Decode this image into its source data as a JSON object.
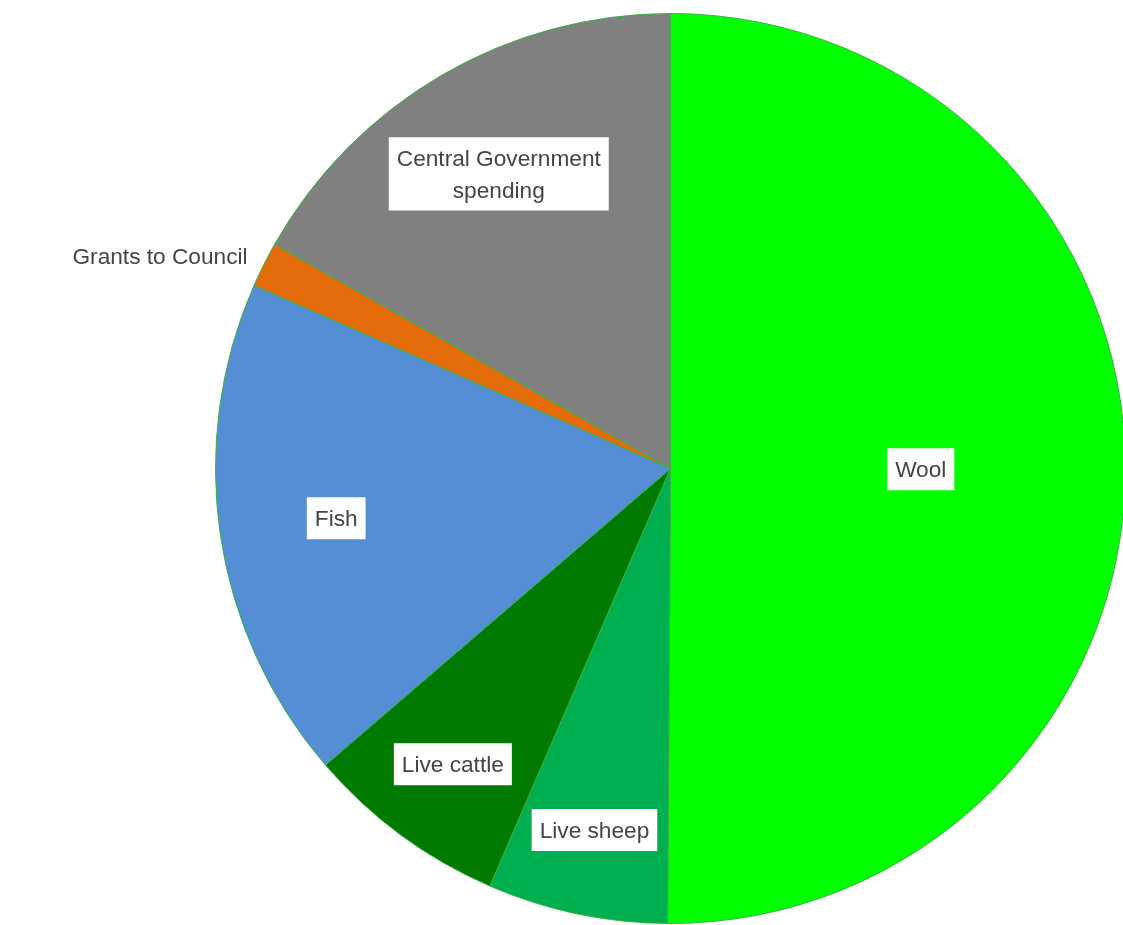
{
  "chart_data": {
    "type": "pie",
    "categories": [
      "Wool",
      "Live sheep",
      "Live cattle",
      "Fish",
      "Grants to Council",
      "Central Government\nspending"
    ],
    "values": [
      50.1,
      6.4,
      7.2,
      17.9,
      1.6,
      16.8
    ],
    "colors": [
      "#00ff00",
      "#00b050",
      "#007a00",
      "#558ed5",
      "#e46c0a",
      "#808080"
    ]
  }
}
